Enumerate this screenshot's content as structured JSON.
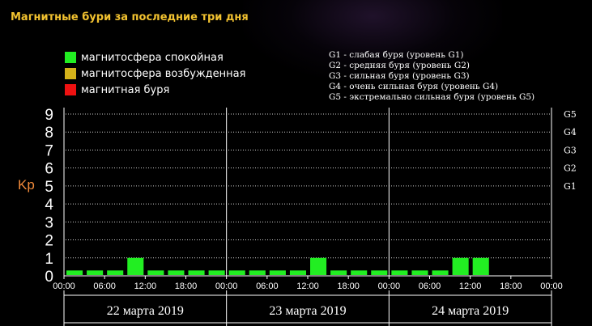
{
  "title": "Магнитные бури за последние три дня",
  "legend_left": [
    {
      "label": "магнитосфера спокойная",
      "color": "#22ee22"
    },
    {
      "label": "магнитосфера возбужденная",
      "color": "#d4b21a"
    },
    {
      "label": "магнитная буря",
      "color": "#ee1111"
    }
  ],
  "legend_right": [
    "G1 - слабая буря (уровень G1)",
    "G2 - средняя буря (уровень G2)",
    "G3 - сильная буря (уровень G3)",
    "G4 - очень сильная буря (уровень G4)",
    "G5 - экстремально сильная буря (уровень G5)"
  ],
  "chart_data": {
    "type": "bar",
    "ylabel": "Kp",
    "ylim": [
      0,
      9
    ],
    "yticks": [
      "0",
      "1",
      "2",
      "3",
      "4",
      "5",
      "6",
      "7",
      "8",
      "9"
    ],
    "right_labels": [
      {
        "value": 5,
        "label": "G1"
      },
      {
        "value": 6,
        "label": "G2"
      },
      {
        "value": 7,
        "label": "G3"
      },
      {
        "value": 8,
        "label": "G4"
      },
      {
        "value": 9,
        "label": "G5"
      }
    ],
    "x_tick_labels": [
      "00:00",
      "06:00",
      "12:00",
      "18:00",
      "00:00",
      "06:00",
      "12:00",
      "18:00",
      "00:00",
      "06:00",
      "12:00",
      "18:00",
      "00:00"
    ],
    "days": [
      "22 марта 2019",
      "23 марта 2019",
      "24 марта 2019"
    ],
    "bar_color": "#22ee22",
    "grid": true,
    "values": [
      0.3,
      0.3,
      0.3,
      1,
      0.3,
      0.3,
      0.3,
      0.3,
      0.3,
      0.3,
      0.3,
      0.3,
      1,
      0.3,
      0.3,
      0.3,
      0.3,
      0.3,
      0.3,
      1,
      1,
      null,
      null,
      null
    ]
  }
}
